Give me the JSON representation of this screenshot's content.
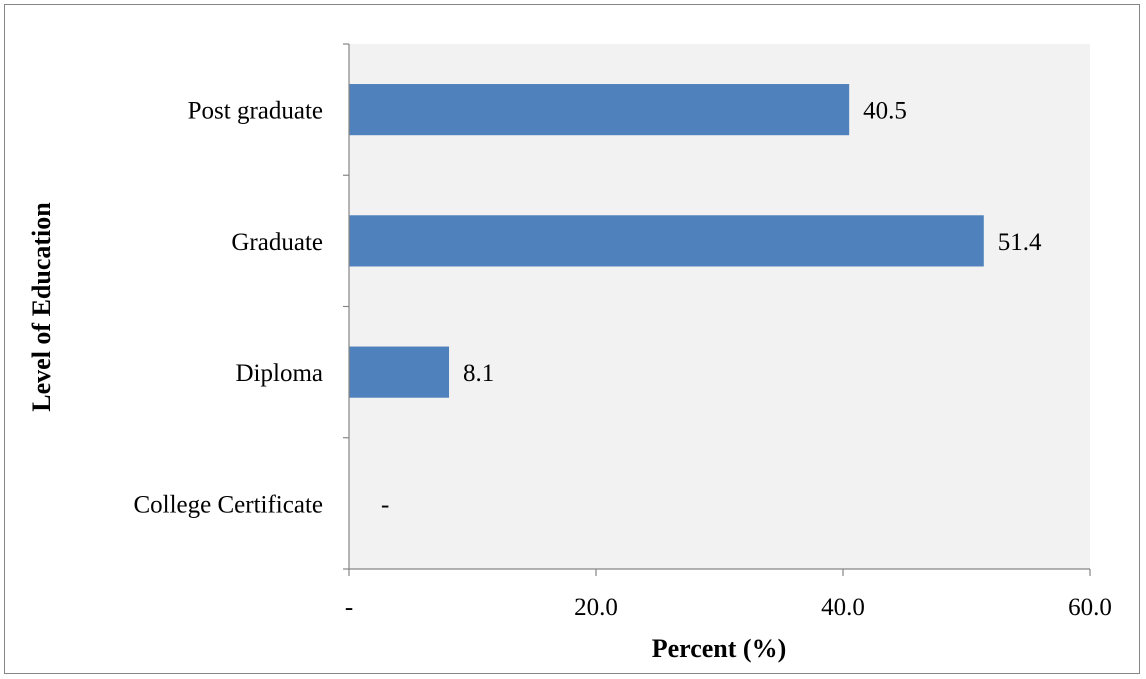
{
  "chart_data": {
    "type": "bar",
    "orientation": "horizontal",
    "categories": [
      "Post graduate",
      "Graduate",
      "Diploma",
      "College Certificate"
    ],
    "values": [
      40.5,
      51.4,
      8.1,
      0
    ],
    "value_labels": [
      "40.5",
      "51.4",
      "8.1",
      "-"
    ],
    "title": "",
    "xlabel": "Percent (%)",
    "ylabel": "Level of Education",
    "xlim": [
      0,
      60
    ],
    "x_ticks": [
      0,
      20,
      40,
      60
    ],
    "x_tick_labels": [
      "-",
      "20.0",
      "40.0",
      "60.0"
    ],
    "grid": false,
    "legend": "none",
    "colors": {
      "bar": "#4f81bd",
      "plot_background": "#f2f2f2",
      "axis": "#868686"
    }
  }
}
